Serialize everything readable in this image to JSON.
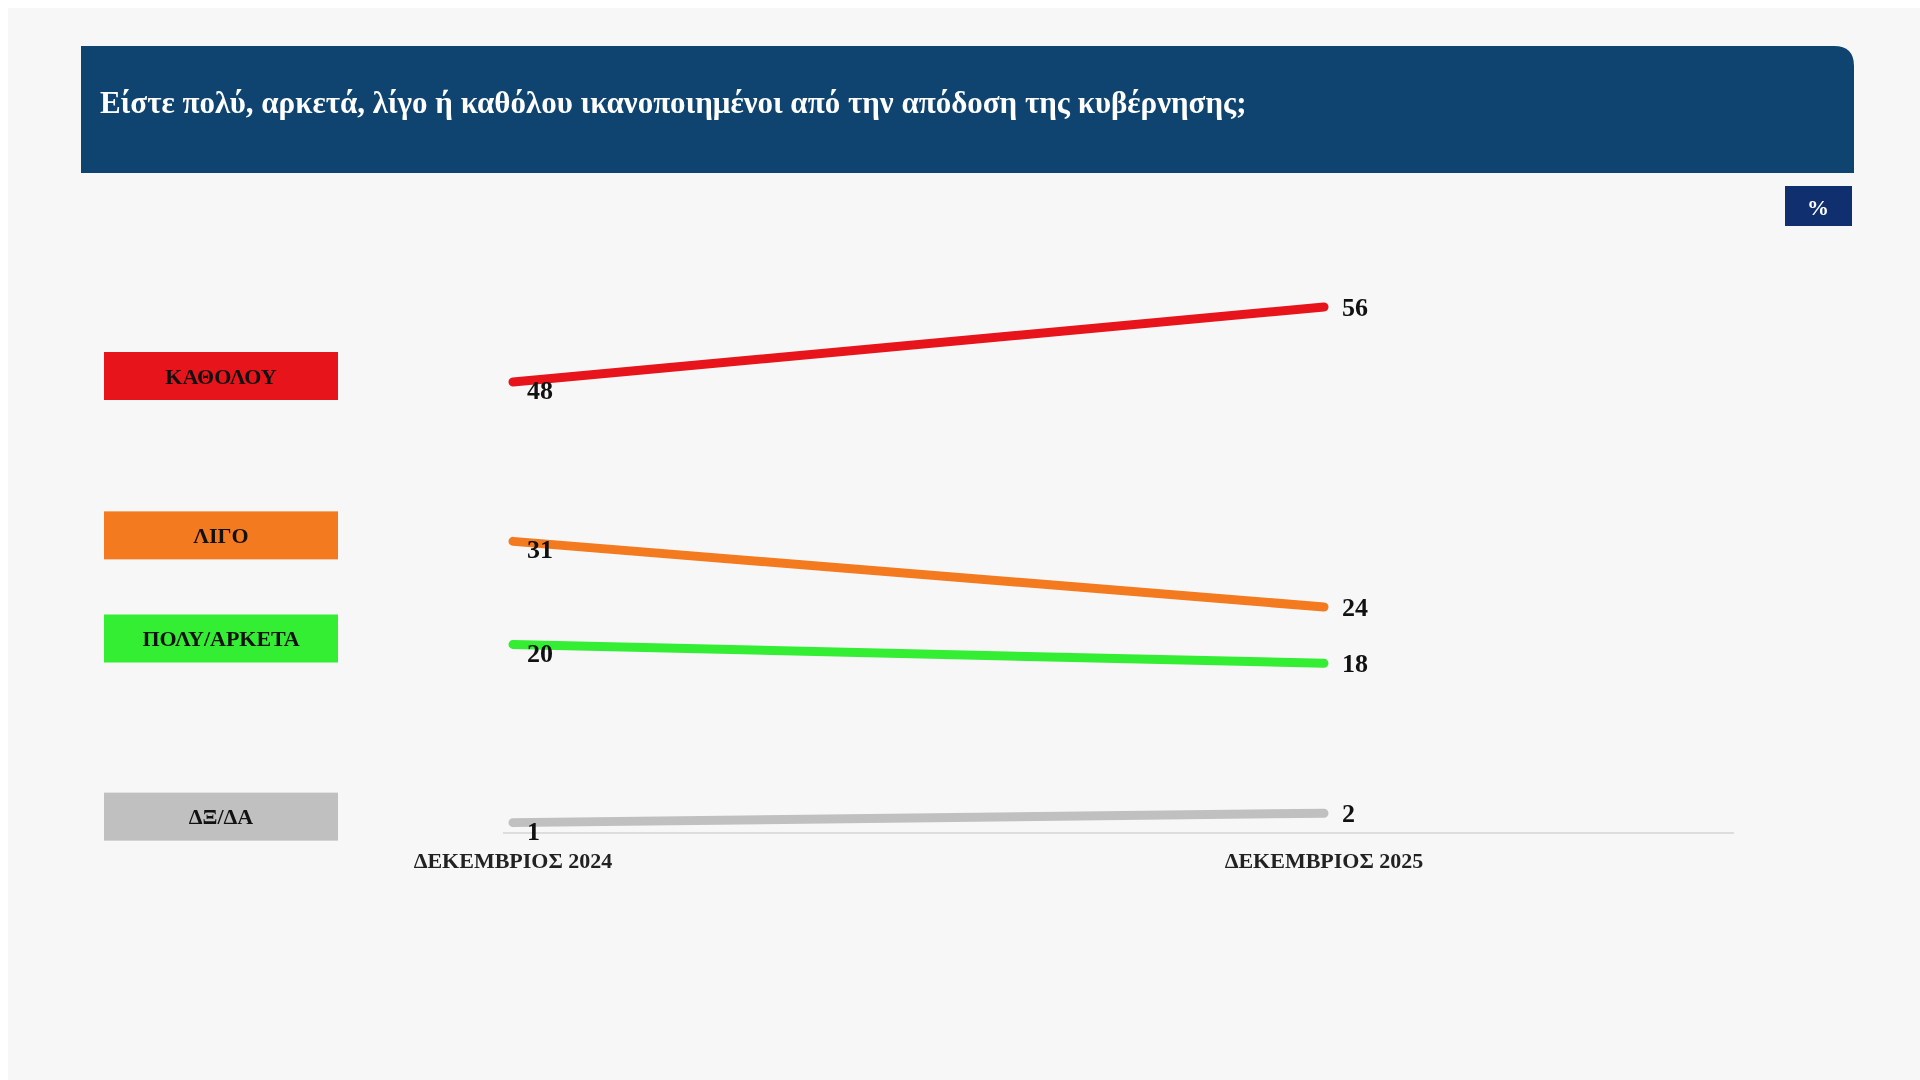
{
  "chart_data": {
    "type": "line",
    "title": "Είστε πολύ, αρκετά, λίγο ή καθόλου ικανοποιημένοι από την απόδοση της κυβέρνησης;",
    "categories": [
      "ΔΕΚΕΜΒΡΙΟΣ 2024",
      "ΔΕΚΕΜΒΡΙΟΣ 2025"
    ],
    "series": [
      {
        "name": "ΚΑΘΟΛΟΥ",
        "color": "#e8141c",
        "values": [
          48,
          56
        ]
      },
      {
        "name": "ΛΙΓΟ",
        "color": "#f47a20",
        "values": [
          31,
          24
        ]
      },
      {
        "name": "ΠΟΛΥ/ΑΡΚΕΤΑ",
        "color": "#33ee33",
        "values": [
          20,
          18
        ]
      },
      {
        "name": "ΔΞ/ΔΑ",
        "color": "#c0c0c0",
        "values": [
          1,
          2
        ]
      }
    ],
    "relative": false,
    "data_labels": true,
    "legend": "left",
    "marker": "none",
    "line_style": "solid",
    "grid": false,
    "annotations": [
      "%"
    ]
  }
}
